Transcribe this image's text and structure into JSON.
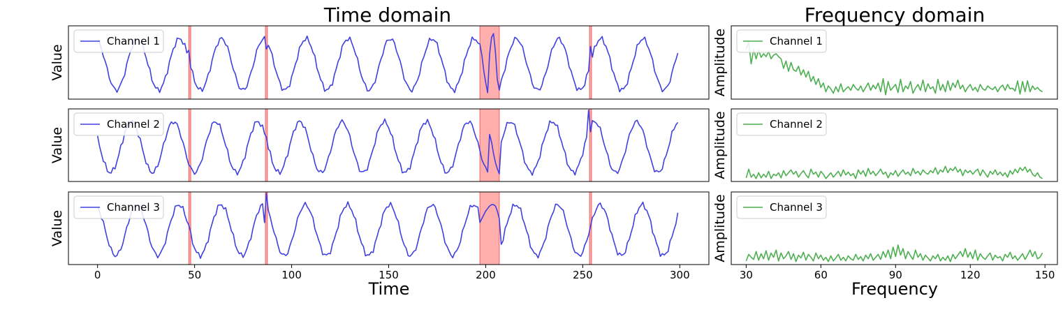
{
  "titles": {
    "time": "Time domain",
    "freq": "Frequency domain"
  },
  "labels": {
    "time_x": "Time",
    "freq_x": "Frequency",
    "time_y": "Value",
    "freq_y": "Amplitude"
  },
  "colors": {
    "time_line": "#4040e0",
    "freq_line": "#4caf50",
    "anomaly": "#ff8c8c"
  },
  "chart_data": [
    {
      "type": "line",
      "title": "Time domain",
      "xlabel": "Time",
      "ylabel": "Value",
      "xlim": [
        -15,
        315
      ],
      "xticks": [
        0,
        50,
        100,
        150,
        200,
        250,
        300
      ],
      "anomaly_regions": [
        [
          47,
          48
        ],
        [
          86.5,
          87.5
        ],
        [
          197,
          207
        ],
        [
          253.5,
          254.5
        ]
      ],
      "panels": [
        {
          "legend": "Channel 1",
          "ylim": [
            -1.35,
            1.5
          ],
          "spikes": [
            [
              47,
              0.55
            ],
            [
              87,
              0.6
            ],
            [
              199,
              -0.25
            ],
            [
              200,
              -0.7
            ],
            [
              201,
              -1.1
            ],
            [
              202,
              0.4
            ],
            [
              203,
              1.05
            ],
            [
              204,
              1.2
            ],
            [
              205,
              0.5
            ],
            [
              206,
              -0.6
            ],
            [
              207,
              -1.0
            ],
            [
              254,
              0.7
            ]
          ]
        },
        {
          "legend": "Channel 2",
          "ylim": [
            -1.35,
            1.5
          ],
          "spikes": [
            [
              87,
              0.4
            ],
            [
              202,
              0.5
            ],
            [
              203,
              0.2
            ],
            [
              204,
              -0.25
            ],
            [
              205,
              -0.6
            ],
            [
              206,
              -0.85
            ],
            [
              207,
              -1.05
            ],
            [
              253,
              1.45
            ],
            [
              254,
              0.6
            ]
          ]
        },
        {
          "legend": "Channel 3",
          "ylim": [
            -1.35,
            1.5
          ],
          "spikes": [
            [
              47,
              0.2
            ],
            [
              87,
              1.45
            ],
            [
              86,
              0.3
            ],
            [
              197,
              0.3
            ],
            [
              198,
              0.45
            ],
            [
              199,
              0.6
            ],
            [
              200,
              0.75
            ],
            [
              201,
              0.85
            ],
            [
              202,
              0.95
            ],
            [
              203,
              1.0
            ],
            [
              204,
              1.0
            ],
            [
              205,
              0.95
            ],
            [
              206,
              0.75
            ],
            [
              207,
              0.45
            ]
          ]
        }
      ]
    },
    {
      "type": "line",
      "title": "Frequency domain",
      "xlabel": "Frequency",
      "ylabel": "Amplitude",
      "xlim": [
        24,
        155
      ],
      "xticks": [
        30,
        60,
        90,
        120,
        150
      ],
      "panels": [
        {
          "legend": "Channel 1",
          "ylim": [
            0,
            1
          ],
          "x": [
            30,
            31,
            32,
            33,
            34,
            35,
            36,
            37,
            38,
            39,
            40,
            41,
            42,
            43,
            44,
            45,
            46,
            47,
            48,
            49,
            50,
            51,
            52,
            53,
            54,
            55,
            56,
            57,
            58,
            59,
            60,
            61,
            62,
            63,
            64,
            65,
            66,
            67,
            68,
            69,
            70,
            71,
            72,
            73,
            74,
            75,
            76,
            77,
            78,
            79,
            80,
            81,
            82,
            83,
            84,
            85,
            86,
            87,
            88,
            89,
            90,
            91,
            92,
            93,
            94,
            95,
            96,
            97,
            98,
            99,
            100,
            101,
            102,
            103,
            104,
            105,
            106,
            107,
            108,
            109,
            110,
            111,
            112,
            113,
            114,
            115,
            116,
            117,
            118,
            119,
            120,
            121,
            122,
            123,
            124,
            125,
            126,
            127,
            128,
            129,
            130,
            131,
            132,
            133,
            134,
            135,
            136,
            137,
            138,
            139,
            140,
            141,
            142,
            143,
            144,
            145,
            146,
            147,
            148,
            149
          ],
          "values": [
            0.68,
            0.78,
            0.48,
            0.68,
            0.55,
            0.67,
            0.57,
            0.62,
            0.58,
            0.65,
            0.55,
            0.6,
            0.62,
            0.58,
            0.55,
            0.42,
            0.52,
            0.38,
            0.5,
            0.4,
            0.38,
            0.45,
            0.33,
            0.4,
            0.3,
            0.38,
            0.24,
            0.31,
            0.2,
            0.28,
            0.16,
            0.22,
            0.1,
            0.18,
            0.14,
            0.08,
            0.17,
            0.1,
            0.21,
            0.1,
            0.14,
            0.17,
            0.12,
            0.2,
            0.15,
            0.12,
            0.18,
            0.1,
            0.16,
            0.22,
            0.12,
            0.19,
            0.14,
            0.22,
            0.1,
            0.28,
            0.06,
            0.24,
            0.12,
            0.16,
            0.2,
            0.09,
            0.27,
            0.1,
            0.18,
            0.14,
            0.24,
            0.08,
            0.15,
            0.2,
            0.12,
            0.26,
            0.1,
            0.21,
            0.14,
            0.17,
            0.08,
            0.27,
            0.12,
            0.2,
            0.1,
            0.25,
            0.12,
            0.22,
            0.16,
            0.26,
            0.14,
            0.19,
            0.1,
            0.16,
            0.2,
            0.12,
            0.16,
            0.1,
            0.2,
            0.14,
            0.12,
            0.18,
            0.15,
            0.13,
            0.17,
            0.1,
            0.16,
            0.19,
            0.12,
            0.2,
            0.14,
            0.15,
            0.11,
            0.25,
            0.07,
            0.24,
            0.1,
            0.25,
            0.1,
            0.18,
            0.13,
            0.16,
            0.12,
            0.1
          ]
        },
        {
          "legend": "Channel 2",
          "ylim": [
            0,
            1
          ],
          "x": [
            30,
            31,
            32,
            33,
            34,
            35,
            36,
            37,
            38,
            39,
            40,
            41,
            42,
            43,
            44,
            45,
            46,
            47,
            48,
            49,
            50,
            51,
            52,
            53,
            54,
            55,
            56,
            57,
            58,
            59,
            60,
            61,
            62,
            63,
            64,
            65,
            66,
            67,
            68,
            69,
            70,
            71,
            72,
            73,
            74,
            75,
            76,
            77,
            78,
            79,
            80,
            81,
            82,
            83,
            84,
            85,
            86,
            87,
            88,
            89,
            90,
            91,
            92,
            93,
            94,
            95,
            96,
            97,
            98,
            99,
            100,
            101,
            102,
            103,
            104,
            105,
            106,
            107,
            108,
            109,
            110,
            111,
            112,
            113,
            114,
            115,
            116,
            117,
            118,
            119,
            120,
            121,
            122,
            123,
            124,
            125,
            126,
            127,
            128,
            129,
            130,
            131,
            132,
            133,
            134,
            135,
            136,
            137,
            138,
            139,
            140,
            141,
            142,
            143,
            144,
            145,
            146,
            147,
            148,
            149
          ],
          "values": [
            0.05,
            0.17,
            0.06,
            0.1,
            0.04,
            0.12,
            0.05,
            0.1,
            0.06,
            0.14,
            0.04,
            0.1,
            0.08,
            0.12,
            0.05,
            0.15,
            0.08,
            0.12,
            0.16,
            0.1,
            0.14,
            0.06,
            0.11,
            0.15,
            0.09,
            0.05,
            0.17,
            0.1,
            0.13,
            0.06,
            0.14,
            0.1,
            0.04,
            0.08,
            0.12,
            0.06,
            0.1,
            0.14,
            0.07,
            0.16,
            0.09,
            0.13,
            0.08,
            0.11,
            0.04,
            0.16,
            0.1,
            0.15,
            0.07,
            0.18,
            0.1,
            0.14,
            0.08,
            0.12,
            0.17,
            0.1,
            0.13,
            0.05,
            0.12,
            0.09,
            0.15,
            0.07,
            0.12,
            0.16,
            0.1,
            0.13,
            0.08,
            0.18,
            0.11,
            0.14,
            0.09,
            0.16,
            0.12,
            0.1,
            0.15,
            0.12,
            0.19,
            0.1,
            0.16,
            0.13,
            0.21,
            0.12,
            0.18,
            0.15,
            0.2,
            0.13,
            0.17,
            0.08,
            0.16,
            0.12,
            0.15,
            0.1,
            0.14,
            0.17,
            0.08,
            0.16,
            0.11,
            0.06,
            0.14,
            0.1,
            0.16,
            0.09,
            0.13,
            0.08,
            0.12,
            0.06,
            0.15,
            0.1,
            0.17,
            0.12,
            0.19,
            0.15,
            0.2,
            0.13,
            0.17,
            0.1,
            0.07,
            0.12,
            0.06,
            0.04
          ]
        },
        {
          "legend": "Channel 3",
          "ylim": [
            0,
            1
          ],
          "x": [
            30,
            31,
            32,
            33,
            34,
            35,
            36,
            37,
            38,
            39,
            40,
            41,
            42,
            43,
            44,
            45,
            46,
            47,
            48,
            49,
            50,
            51,
            52,
            53,
            54,
            55,
            56,
            57,
            58,
            59,
            60,
            61,
            62,
            63,
            64,
            65,
            66,
            67,
            68,
            69,
            70,
            71,
            72,
            73,
            74,
            75,
            76,
            77,
            78,
            79,
            80,
            81,
            82,
            83,
            84,
            85,
            86,
            87,
            88,
            89,
            90,
            91,
            92,
            93,
            94,
            95,
            96,
            97,
            98,
            99,
            100,
            101,
            102,
            103,
            104,
            105,
            106,
            107,
            108,
            109,
            110,
            111,
            112,
            113,
            114,
            115,
            116,
            117,
            118,
            119,
            120,
            121,
            122,
            123,
            124,
            125,
            126,
            127,
            128,
            129,
            130,
            131,
            132,
            133,
            134,
            135,
            136,
            137,
            138,
            139,
            140,
            141,
            142,
            143,
            144,
            145,
            146,
            147,
            148,
            149
          ],
          "values": [
            0.05,
            0.14,
            0.1,
            0.07,
            0.18,
            0.06,
            0.15,
            0.08,
            0.19,
            0.06,
            0.16,
            0.1,
            0.2,
            0.05,
            0.16,
            0.08,
            0.12,
            0.18,
            0.07,
            0.15,
            0.04,
            0.13,
            0.09,
            0.17,
            0.06,
            0.14,
            0.1,
            0.05,
            0.16,
            0.08,
            0.13,
            0.06,
            0.1,
            0.04,
            0.12,
            0.05,
            0.09,
            0.14,
            0.06,
            0.1,
            0.05,
            0.12,
            0.08,
            0.06,
            0.14,
            0.07,
            0.11,
            0.05,
            0.13,
            0.08,
            0.15,
            0.06,
            0.1,
            0.14,
            0.07,
            0.18,
            0.1,
            0.2,
            0.08,
            0.24,
            0.11,
            0.27,
            0.13,
            0.22,
            0.08,
            0.18,
            0.12,
            0.07,
            0.2,
            0.1,
            0.15,
            0.06,
            0.13,
            0.09,
            0.05,
            0.12,
            0.08,
            0.14,
            0.05,
            0.1,
            0.06,
            0.12,
            0.04,
            0.14,
            0.08,
            0.13,
            0.18,
            0.11,
            0.22,
            0.1,
            0.17,
            0.08,
            0.2,
            0.06,
            0.15,
            0.1,
            0.07,
            0.12,
            0.16,
            0.06,
            0.13,
            0.09,
            0.11,
            0.05,
            0.14,
            0.1,
            0.17,
            0.08,
            0.12,
            0.06,
            0.1,
            0.15,
            0.07,
            0.13,
            0.2,
            0.11,
            0.18,
            0.08,
            0.1,
            0.16
          ]
        }
      ]
    }
  ]
}
